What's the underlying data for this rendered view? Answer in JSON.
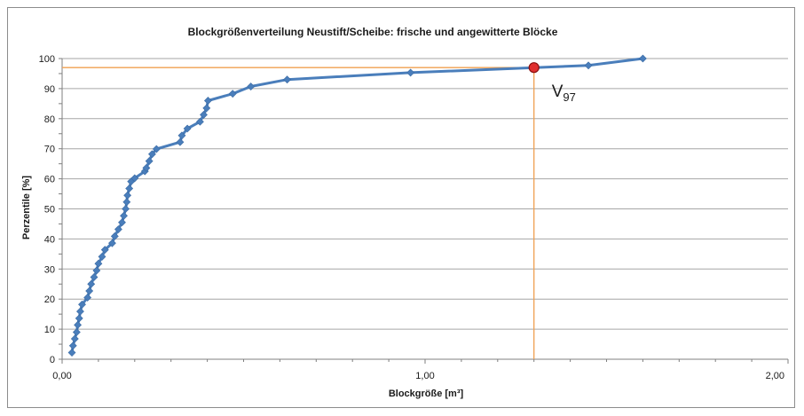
{
  "chart_data": {
    "type": "scatter",
    "title": "Blockgrößenverteilung Neustift/Scheibe: frische und angewitterte Blöcke",
    "xlabel": "Blockgröße [m³]",
    "ylabel": "Perzentile [%]",
    "xlim": [
      0,
      2
    ],
    "ylim": [
      0,
      100
    ],
    "x_ticks": [
      "0,00",
      "1,00",
      "2,00"
    ],
    "y_ticks": [
      "0",
      "10",
      "20",
      "30",
      "40",
      "50",
      "60",
      "70",
      "80",
      "90",
      "100"
    ],
    "grid": "horizontal",
    "series": [
      {
        "color": "#4a7ebb",
        "marker": "diamond",
        "points": [
          [
            0.027,
            2.2
          ],
          [
            0.03,
            4.5
          ],
          [
            0.035,
            6.8
          ],
          [
            0.04,
            9.0
          ],
          [
            0.043,
            11.4
          ],
          [
            0.047,
            13.6
          ],
          [
            0.05,
            15.9
          ],
          [
            0.055,
            18.2
          ],
          [
            0.07,
            20.5
          ],
          [
            0.075,
            22.7
          ],
          [
            0.08,
            25.0
          ],
          [
            0.088,
            27.3
          ],
          [
            0.095,
            29.5
          ],
          [
            0.1,
            31.8
          ],
          [
            0.11,
            34.1
          ],
          [
            0.118,
            36.4
          ],
          [
            0.138,
            38.6
          ],
          [
            0.145,
            40.9
          ],
          [
            0.155,
            43.2
          ],
          [
            0.165,
            45.5
          ],
          [
            0.17,
            47.7
          ],
          [
            0.175,
            50.0
          ],
          [
            0.178,
            52.3
          ],
          [
            0.18,
            54.5
          ],
          [
            0.185,
            56.8
          ],
          [
            0.19,
            59.1
          ],
          [
            0.2,
            60.2
          ],
          [
            0.228,
            62.5
          ],
          [
            0.232,
            63.6
          ],
          [
            0.24,
            65.9
          ],
          [
            0.248,
            68.2
          ],
          [
            0.26,
            69.9
          ],
          [
            0.325,
            72.2
          ],
          [
            0.33,
            74.4
          ],
          [
            0.345,
            76.7
          ],
          [
            0.38,
            79.0
          ],
          [
            0.39,
            81.3
          ],
          [
            0.398,
            83.5
          ],
          [
            0.402,
            86.0
          ],
          [
            0.47,
            88.3
          ],
          [
            0.52,
            90.7
          ],
          [
            0.62,
            93.0
          ],
          [
            0.96,
            95.3
          ],
          [
            1.45,
            97.7
          ],
          [
            1.6,
            100.0
          ]
        ]
      }
    ],
    "highlight": {
      "label_main": "V",
      "label_sub": "97",
      "x": 1.3,
      "y": 97,
      "color": "#e03030",
      "guide_color": "#f0a050"
    }
  }
}
